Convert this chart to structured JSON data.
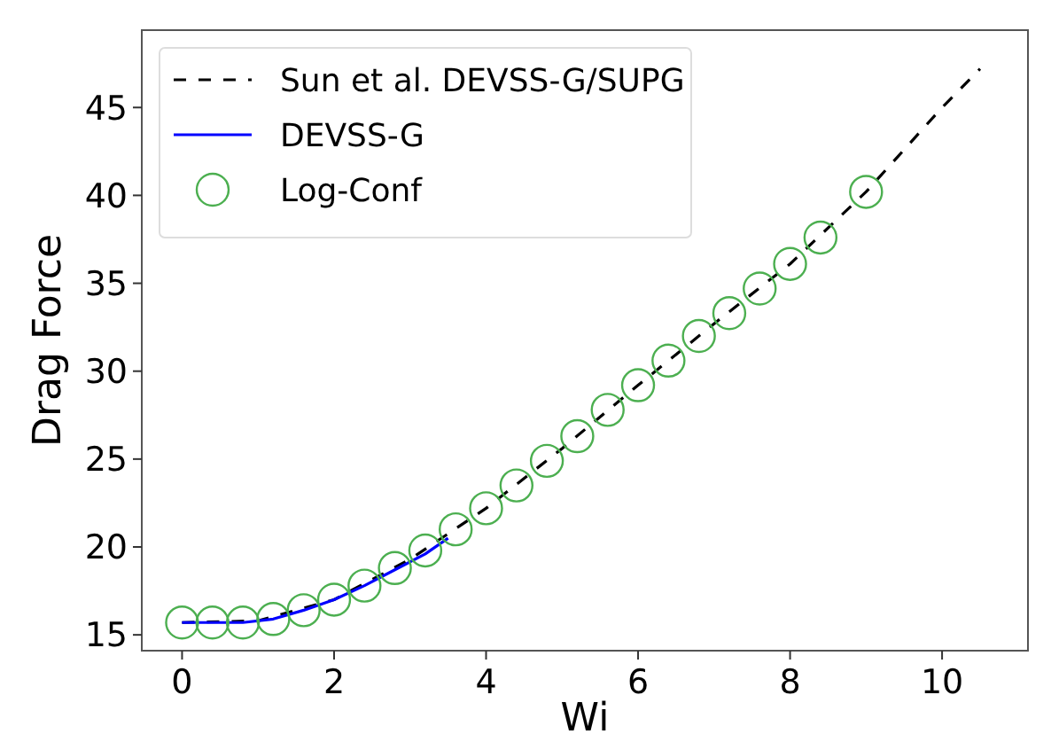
{
  "chart_data": {
    "type": "line",
    "xlabel": "Wi",
    "ylabel": "Drag Force",
    "xlim": [
      -0.53,
      11.13
    ],
    "ylim": [
      14.1,
      49.4
    ],
    "xticks": [
      0,
      2,
      4,
      6,
      8,
      10
    ],
    "yticks": [
      15,
      20,
      25,
      30,
      35,
      40,
      45
    ],
    "grid": false,
    "legend": "top left",
    "series": [
      {
        "name": "Sun et al. DEVSS-G/SUPG",
        "color": "#000000",
        "line_style": "dashed",
        "marker": "none",
        "x": [
          0,
          1,
          2,
          3,
          4,
          5,
          6,
          7,
          8,
          9,
          10,
          10.5
        ],
        "values": [
          15.7,
          15.8,
          17.0,
          19.3,
          22.2,
          25.6,
          29.2,
          32.7,
          36.1,
          40.2,
          45.0,
          47.2
        ]
      },
      {
        "name": "DEVSS-G",
        "color": "#0000ff",
        "line_style": "solid",
        "marker": "none",
        "x": [
          0,
          0.4,
          0.8,
          1.2,
          1.6,
          2.0,
          2.4,
          2.8,
          3.2,
          3.5
        ],
        "values": [
          15.7,
          15.7,
          15.7,
          15.9,
          16.4,
          17.0,
          17.8,
          18.7,
          19.6,
          20.5
        ]
      },
      {
        "name": "Log-Conf",
        "type": "scatter",
        "color": "#4caf50",
        "marker": "circle",
        "x": [
          0,
          0.4,
          0.8,
          1.2,
          1.6,
          2.0,
          2.4,
          2.8,
          3.2,
          3.6,
          4.0,
          4.4,
          4.8,
          5.2,
          5.6,
          6.0,
          6.4,
          6.8,
          7.2,
          7.6,
          8.0,
          8.4,
          9.0
        ],
        "values": [
          15.7,
          15.7,
          15.7,
          15.9,
          16.4,
          17.0,
          17.8,
          18.8,
          19.8,
          21.0,
          22.2,
          23.5,
          24.9,
          26.3,
          27.8,
          29.2,
          30.6,
          32.0,
          33.3,
          34.7,
          36.1,
          37.6,
          40.2
        ]
      }
    ]
  }
}
